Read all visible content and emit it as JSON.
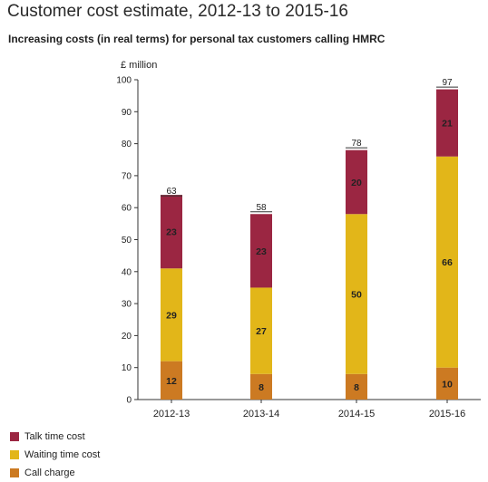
{
  "chart_data": {
    "type": "bar",
    "stacked": true,
    "title": "Customer cost estimate, 2012-13 to 2015-16",
    "subtitle": "Increasing costs (in real terms) for personal tax customers calling HMRC",
    "ylabel": "£ million",
    "ylim": [
      0,
      100
    ],
    "yticks": [
      "0",
      "10",
      "20",
      "30",
      "40",
      "50",
      "60",
      "70",
      "80",
      "90",
      "100"
    ],
    "categories": [
      "2012-13",
      "2013-14",
      "2014-15",
      "2015-16"
    ],
    "series": [
      {
        "name": "Call charge",
        "values": [
          12,
          8,
          8,
          10
        ],
        "labels": [
          "12",
          "8",
          "8",
          "10"
        ],
        "color": "#CC7A22"
      },
      {
        "name": "Waiting time cost",
        "values": [
          29,
          27,
          50,
          66
        ],
        "labels": [
          "29",
          "27",
          "50",
          "66"
        ],
        "color": "#E2B619"
      },
      {
        "name": "Talk time cost",
        "values": [
          23,
          23,
          20,
          21
        ],
        "labels": [
          "23",
          "23",
          "20",
          "21"
        ],
        "color": "#9B2642"
      }
    ],
    "totals": [
      63,
      58,
      78,
      97
    ],
    "total_labels": [
      "63",
      "58",
      "78",
      "97"
    ],
    "legend_position": "bottom-left",
    "grid": false
  }
}
